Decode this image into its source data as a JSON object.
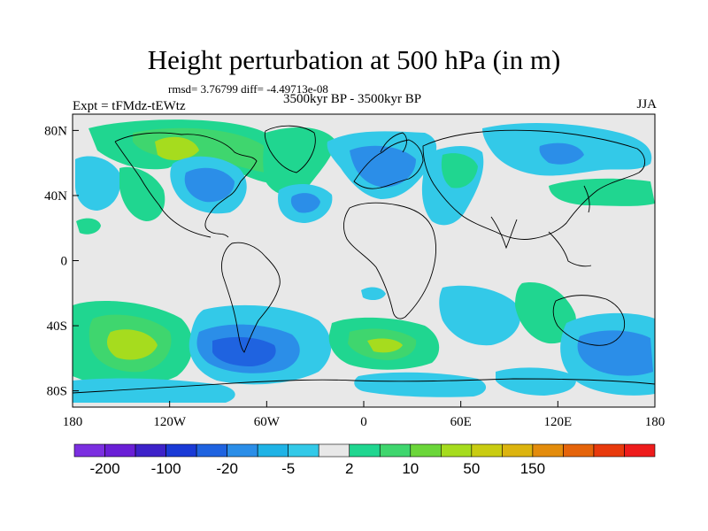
{
  "title": "Height perturbation at 500 hPa (in m)",
  "stats": "rmsd= 3.76799 diff= -4.49713e-08",
  "experiment": "Expt = tFMdz-tEWtz",
  "period": "3500kyr BP - 3500kyr BP",
  "season": "JJA",
  "axes": {
    "lon_labels": [
      "180",
      "120W",
      "60W",
      "0",
      "60E",
      "120E",
      "180"
    ],
    "lon_values": [
      -180,
      -120,
      -60,
      0,
      60,
      120,
      180
    ],
    "lat_labels": [
      "80N",
      "40N",
      "0",
      "40S",
      "80S"
    ],
    "lat_values": [
      80,
      40,
      0,
      -40,
      -80
    ],
    "lat_range": [
      -90,
      90
    ],
    "lon_range": [
      -180,
      180
    ]
  },
  "colorbar": {
    "colors": [
      "#7b2fe0",
      "#6a1fd6",
      "#3d22c9",
      "#1a3ad6",
      "#1f63e0",
      "#2b8ee8",
      "#1fb3e6",
      "#33c9e8",
      "#e8e8e8",
      "#20d690",
      "#3fd66e",
      "#6bd63a",
      "#a6dc1e",
      "#c9cc12",
      "#dcb40f",
      "#e38c0c",
      "#e5640b",
      "#e83a0d",
      "#ee1c1c"
    ],
    "tick_labels": [
      "-200",
      "-100",
      "-20",
      "-5",
      "2",
      "10",
      "50",
      "150"
    ]
  },
  "field_colors": {
    "neg1": "#33c9e8",
    "neg2": "#2b8ee8",
    "neg3": "#1f63e0",
    "pos1": "#20d690",
    "pos2": "#3fd66e",
    "pos3": "#a6dc1e",
    "background": "#e8e8e8"
  }
}
